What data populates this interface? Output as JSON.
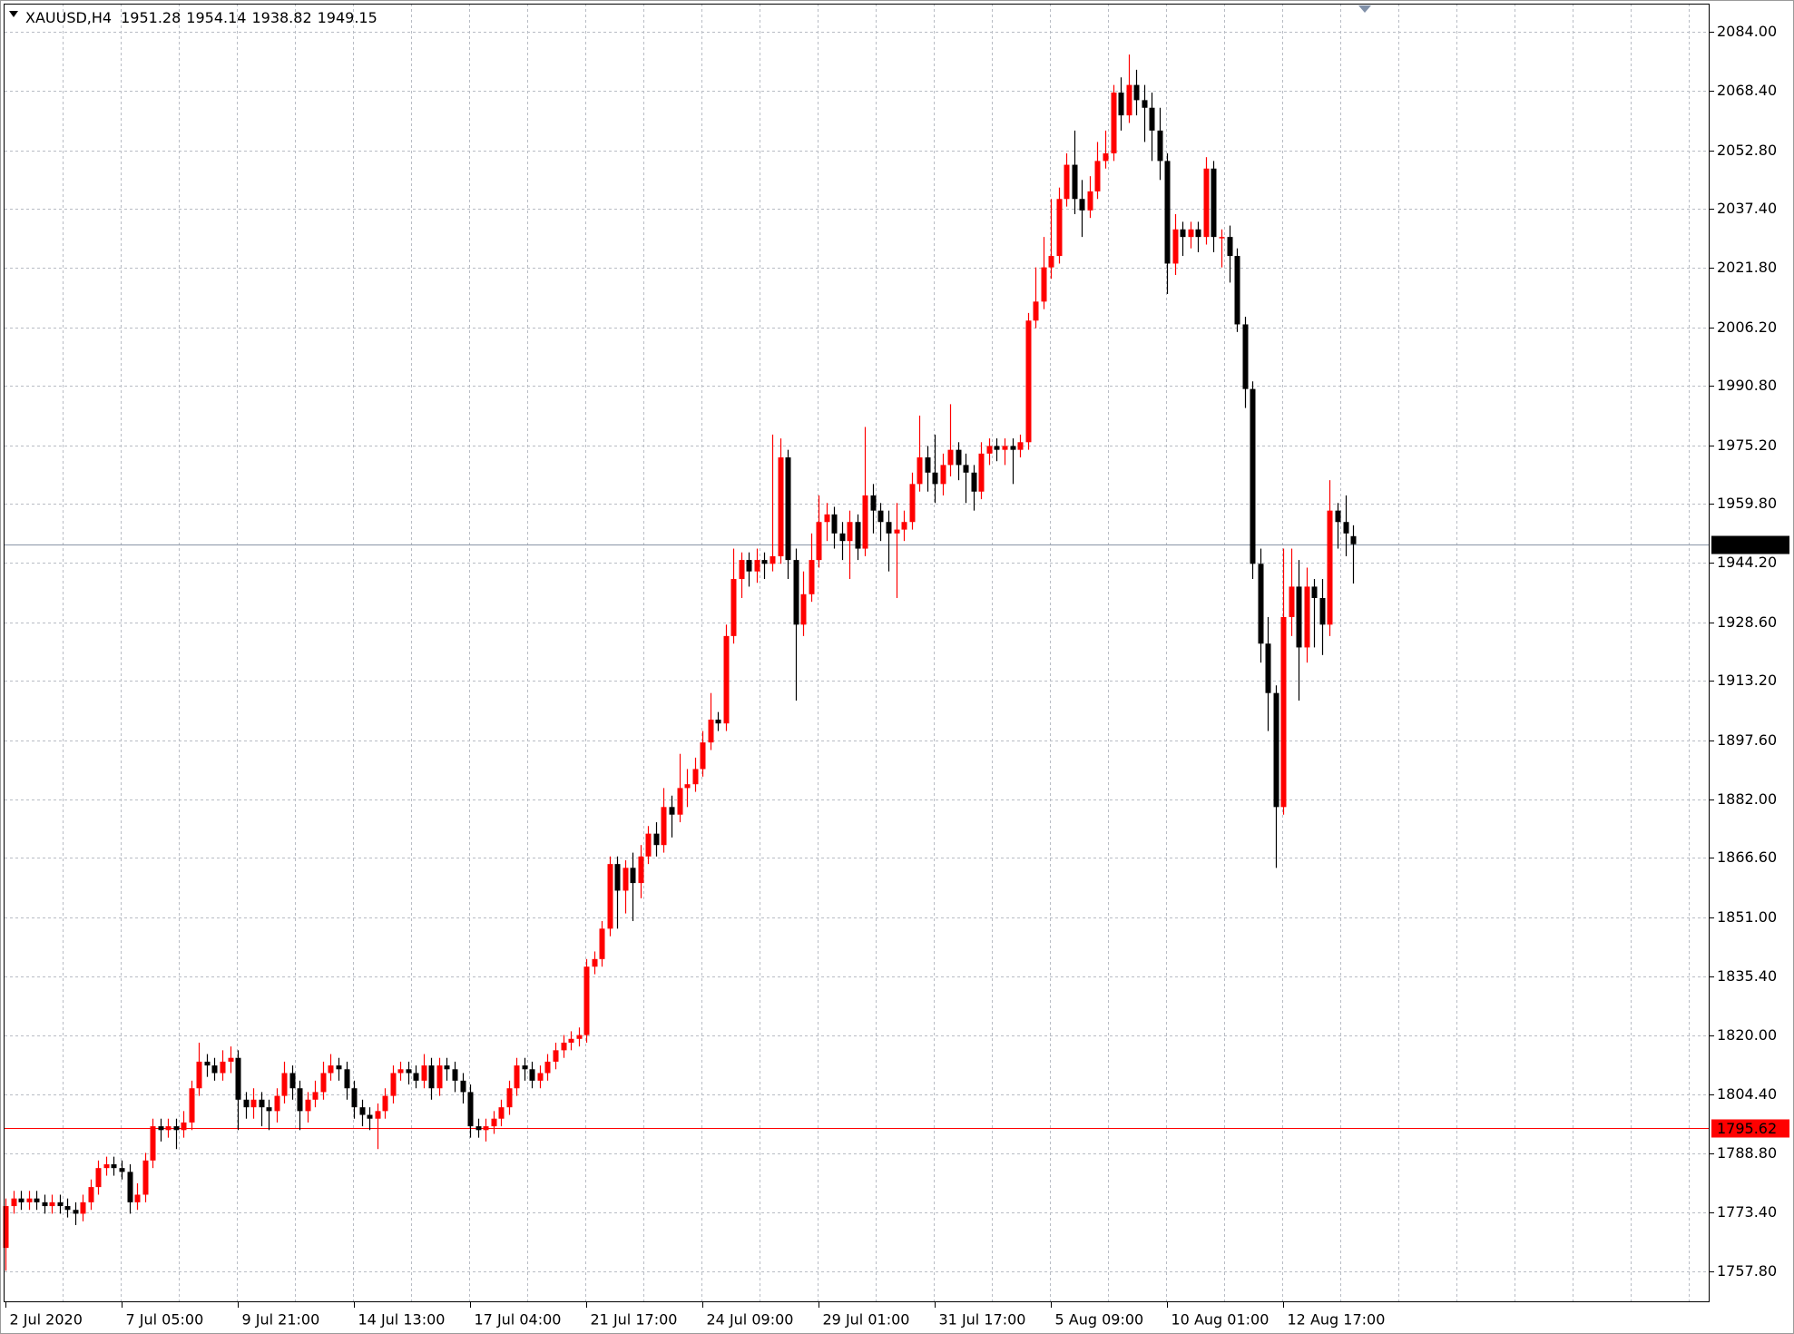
{
  "chart_data": {
    "type": "candlestick",
    "symbol": "XAUUSD,H4",
    "up_color": "#ff0000",
    "down_color": "#000000",
    "price_line_color": "#8a96a6",
    "level": 1795.62,
    "level_color": "#ff0000",
    "grid": true,
    "ylim": [
      1749.7,
      2091.4
    ],
    "yticks": [
      {
        "value": 2084,
        "label": "2084.00"
      },
      {
        "value": 2068.4,
        "label": "2068.40"
      },
      {
        "value": 2052.8,
        "label": "2052.80"
      },
      {
        "value": 2037.4,
        "label": "2037.40"
      },
      {
        "value": 2021.8,
        "label": "2021.80"
      },
      {
        "value": 2006.2,
        "label": "2006.20"
      },
      {
        "value": 1990.8,
        "label": "1990.80"
      },
      {
        "value": 1975.2,
        "label": "1975.20"
      },
      {
        "value": 1959.8,
        "label": "1959.80"
      },
      {
        "value": 1944.2,
        "label": "1944.20"
      },
      {
        "value": 1928.6,
        "label": "1928.60"
      },
      {
        "value": 1913.2,
        "label": "1913.20"
      },
      {
        "value": 1897.6,
        "label": "1897.60"
      },
      {
        "value": 1882,
        "label": "1882.00"
      },
      {
        "value": 1866.6,
        "label": "1866.60"
      },
      {
        "value": 1851,
        "label": "1851.00"
      },
      {
        "value": 1835.4,
        "label": "1835.40"
      },
      {
        "value": 1820,
        "label": "1820.00"
      },
      {
        "value": 1804.4,
        "label": "1804.40"
      },
      {
        "value": 1788.8,
        "label": "1788.80"
      },
      {
        "value": 1773.4,
        "label": "1773.40"
      },
      {
        "value": 1757.8,
        "label": "1757.80"
      }
    ],
    "categories": [
      "2 Jul 2020",
      null,
      null,
      null,
      null,
      null,
      null,
      null,
      null,
      null,
      null,
      null,
      null,
      null,
      null,
      "7 Jul 05:00",
      null,
      null,
      null,
      null,
      null,
      null,
      null,
      null,
      null,
      null,
      null,
      null,
      null,
      null,
      "9 Jul 21:00",
      null,
      null,
      null,
      null,
      null,
      null,
      null,
      null,
      null,
      null,
      null,
      null,
      null,
      null,
      "14 Jul 13:00",
      null,
      null,
      null,
      null,
      null,
      null,
      null,
      null,
      null,
      null,
      null,
      null,
      null,
      null,
      "17 Jul 04:00",
      null,
      null,
      null,
      null,
      null,
      null,
      null,
      null,
      null,
      null,
      null,
      null,
      null,
      null,
      "21 Jul 17:00",
      null,
      null,
      null,
      null,
      null,
      null,
      null,
      null,
      null,
      null,
      null,
      null,
      null,
      null,
      "24 Jul 09:00",
      null,
      null,
      null,
      null,
      null,
      null,
      null,
      null,
      null,
      null,
      null,
      null,
      null,
      null,
      "29 Jul 01:00",
      null,
      null,
      null,
      null,
      null,
      null,
      null,
      null,
      null,
      null,
      null,
      null,
      null,
      null,
      "31 Jul 17:00",
      null,
      null,
      null,
      null,
      null,
      null,
      null,
      null,
      null,
      null,
      null,
      null,
      null,
      null,
      "5 Aug 09:00",
      null,
      null,
      null,
      null,
      null,
      null,
      null,
      null,
      null,
      null,
      null,
      null,
      null,
      null,
      "10 Aug 01:00",
      null,
      null,
      null,
      null,
      null,
      null,
      null,
      null,
      null,
      null,
      null,
      null,
      null,
      null,
      "12 Aug 17:00",
      null,
      null,
      null,
      null,
      null,
      null,
      null,
      null,
      null
    ],
    "open": [
      1764,
      1775,
      1777,
      1776,
      1777,
      1776,
      1775,
      1776,
      1775,
      1774,
      1773,
      1776,
      1780,
      1785,
      1786,
      1785,
      1784,
      1776,
      1778,
      1787,
      1796,
      1795,
      1796,
      1795,
      1797,
      1806,
      1813,
      1812,
      1810,
      1813,
      1814,
      1803,
      1801,
      1803,
      1801,
      1800,
      1804,
      1810,
      1806,
      1800,
      1803,
      1805,
      1810,
      1812,
      1811,
      1806,
      1801,
      1799,
      1798,
      1800,
      1804,
      1810,
      1811,
      1810,
      1808,
      1812,
      1806,
      1812,
      1811,
      1808,
      1805,
      1796,
      1795,
      1796,
      1798,
      1801,
      1806,
      1812,
      1811,
      1808,
      1810,
      1813,
      1816,
      1818,
      1819,
      1820,
      1838,
      1840,
      1848,
      1865,
      1858,
      1864,
      1860,
      1867,
      1873,
      1870,
      1880,
      1878,
      1885,
      1886,
      1890,
      1897,
      1903,
      1902,
      1925,
      1940,
      1945,
      1942,
      1945,
      1944,
      1946,
      1972,
      1945,
      1928,
      1936,
      1945,
      1955,
      1957,
      1952,
      1950,
      1955,
      1948,
      1962,
      1958,
      1955,
      1952,
      1953,
      1955,
      1965,
      1972,
      1968,
      1965,
      1970,
      1974,
      1970,
      1968,
      1963,
      1973,
      1975,
      1974,
      1975,
      1974,
      1976,
      2008,
      2013,
      2022,
      2025,
      2040,
      2049,
      2040,
      2037,
      2042,
      2050,
      2052,
      2068,
      2062,
      2070,
      2066,
      2064,
      2058,
      2050,
      2023,
      2032,
      2030,
      2032,
      2030,
      2048,
      2030,
      2030,
      2025,
      2007,
      1990,
      1944,
      1923,
      1910,
      1880,
      1930,
      1938,
      1922,
      1938,
      1935,
      1928,
      1958,
      1955,
      1951.28
    ],
    "high": [
      1777,
      1779,
      1779,
      1779,
      1779,
      1778,
      1778,
      1778,
      1777,
      1776,
      1778,
      1782,
      1787,
      1788,
      1788,
      1787,
      1786,
      1781,
      1789,
      1798,
      1798,
      1798,
      1798,
      1800,
      1808,
      1818,
      1815,
      1814,
      1816,
      1817,
      1816,
      1805,
      1806,
      1805,
      1803,
      1806,
      1813,
      1812,
      1808,
      1805,
      1808,
      1813,
      1815,
      1814,
      1813,
      1808,
      1803,
      1801,
      1802,
      1806,
      1812,
      1813,
      1813,
      1812,
      1815,
      1814,
      1814,
      1814,
      1813,
      1810,
      1807,
      1798,
      1798,
      1800,
      1803,
      1808,
      1814,
      1814,
      1813,
      1812,
      1815,
      1818,
      1820,
      1821,
      1822,
      1840,
      1842,
      1850,
      1867,
      1867,
      1866,
      1868,
      1870,
      1875,
      1876,
      1885,
      1883,
      1894,
      1890,
      1893,
      1900,
      1910,
      1905,
      1928,
      1948,
      1947,
      1947,
      1948,
      1947,
      1978,
      1977,
      1974,
      1948,
      1942,
      1952,
      1962,
      1960,
      1959,
      1955,
      1958,
      1957,
      1980,
      1965,
      1960,
      1958,
      1960,
      1958,
      1968,
      1983,
      1975,
      1978,
      1973,
      1986,
      1976,
      1973,
      1970,
      1976,
      1977,
      1977,
      1977,
      1977,
      1978,
      2010,
      2022,
      2030,
      2040,
      2043,
      2052,
      2058,
      2045,
      2046,
      2055,
      2058,
      2070,
      2072,
      2078,
      2074,
      2070,
      2068,
      2064,
      2052,
      2036,
      2034,
      2034,
      2034,
      2051,
      2050,
      2032,
      2033,
      2027,
      2009,
      1992,
      1948,
      1930,
      1912,
      1948,
      1948,
      1945,
      1943,
      1940,
      1940,
      1966,
      1960,
      1962,
      1954.14
    ],
    "low": [
      1758,
      1773,
      1774,
      1774,
      1774,
      1773,
      1773,
      1773,
      1772,
      1770,
      1771,
      1774,
      1778,
      1783,
      1783,
      1782,
      1773,
      1774,
      1776,
      1785,
      1792,
      1793,
      1790,
      1793,
      1795,
      1804,
      1809,
      1808,
      1808,
      1810,
      1795,
      1798,
      1798,
      1796,
      1795,
      1797,
      1802,
      1803,
      1795,
      1797,
      1801,
      1803,
      1808,
      1808,
      1803,
      1798,
      1796,
      1795,
      1790,
      1798,
      1802,
      1808,
      1807,
      1806,
      1806,
      1803,
      1804,
      1808,
      1805,
      1802,
      1793,
      1793,
      1792,
      1794,
      1796,
      1799,
      1804,
      1808,
      1806,
      1806,
      1808,
      1811,
      1814,
      1816,
      1817,
      1818,
      1836,
      1838,
      1846,
      1848,
      1852,
      1850,
      1856,
      1865,
      1867,
      1868,
      1872,
      1876,
      1880,
      1884,
      1888,
      1895,
      1900,
      1900,
      1923,
      1935,
      1938,
      1939,
      1940,
      1942,
      1944,
      1940,
      1908,
      1925,
      1934,
      1943,
      1950,
      1948,
      1945,
      1940,
      1945,
      1946,
      1952,
      1950,
      1942,
      1935,
      1950,
      1953,
      1963,
      1963,
      1960,
      1962,
      1967,
      1966,
      1960,
      1958,
      1961,
      1970,
      1971,
      1970,
      1965,
      1972,
      1974,
      2006,
      2011,
      2019,
      2023,
      2038,
      2036,
      2030,
      2035,
      2040,
      2048,
      2050,
      2058,
      2060,
      2062,
      2055,
      2050,
      2045,
      2015,
      2020,
      2025,
      2027,
      2026,
      2028,
      2026,
      2022,
      2018,
      2005,
      1985,
      1940,
      1918,
      1900,
      1864,
      1878,
      1925,
      1908,
      1918,
      1922,
      1920,
      1925,
      1948,
      1946,
      1938.82
    ],
    "close": [
      1775,
      1777,
      1776,
      1777,
      1776,
      1775,
      1776,
      1775,
      1774,
      1773,
      1776,
      1780,
      1785,
      1786,
      1785,
      1784,
      1776,
      1778,
      1787,
      1796,
      1795,
      1796,
      1795,
      1797,
      1806,
      1813,
      1812,
      1810,
      1813,
      1814,
      1803,
      1801,
      1803,
      1801,
      1800,
      1804,
      1810,
      1806,
      1800,
      1803,
      1805,
      1810,
      1812,
      1811,
      1806,
      1801,
      1799,
      1798,
      1800,
      1804,
      1810,
      1811,
      1810,
      1808,
      1812,
      1806,
      1812,
      1811,
      1808,
      1805,
      1796,
      1795,
      1796,
      1798,
      1801,
      1806,
      1812,
      1811,
      1808,
      1810,
      1813,
      1816,
      1818,
      1819,
      1820,
      1838,
      1840,
      1848,
      1865,
      1858,
      1864,
      1860,
      1867,
      1873,
      1870,
      1880,
      1878,
      1885,
      1886,
      1890,
      1897,
      1903,
      1902,
      1925,
      1940,
      1945,
      1942,
      1945,
      1944,
      1946,
      1972,
      1945,
      1928,
      1936,
      1945,
      1955,
      1957,
      1952,
      1950,
      1955,
      1948,
      1962,
      1958,
      1955,
      1952,
      1953,
      1955,
      1965,
      1972,
      1968,
      1965,
      1970,
      1974,
      1970,
      1968,
      1963,
      1973,
      1975,
      1974,
      1975,
      1974,
      1976,
      2008,
      2013,
      2022,
      2025,
      2040,
      2049,
      2040,
      2037,
      2042,
      2050,
      2052,
      2068,
      2062,
      2070,
      2066,
      2064,
      2058,
      2050,
      2023,
      2032,
      2030,
      2032,
      2030,
      2048,
      2030,
      2030,
      2025,
      2007,
      1990,
      1944,
      1923,
      1910,
      1880,
      1930,
      1938,
      1922,
      1938,
      1935,
      1928,
      1958,
      1955,
      1952,
      1949.15
    ]
  }
}
